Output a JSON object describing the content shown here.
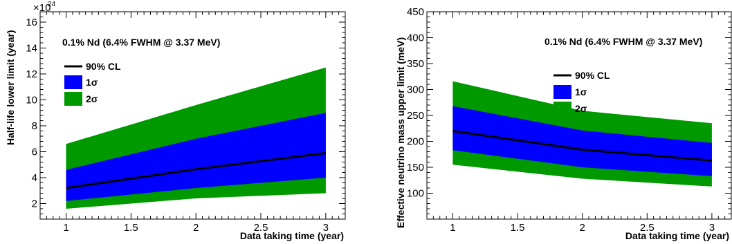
{
  "chart_data": [
    {
      "type": "area",
      "id": "left",
      "x": [
        1,
        2,
        3
      ],
      "series": [
        {
          "name": "90% CL",
          "role": "median",
          "values": [
            3.2,
            4.65,
            5.9
          ]
        },
        {
          "name": "1σ",
          "role": "band",
          "low": [
            2.2,
            3.2,
            4.0
          ],
          "high": [
            4.6,
            7.0,
            9.0
          ]
        },
        {
          "name": "2σ",
          "role": "band",
          "low": [
            1.6,
            2.4,
            2.8
          ],
          "high": [
            6.6,
            9.6,
            12.5
          ]
        }
      ],
      "xlim": [
        0.8,
        3.15
      ],
      "ylim": [
        0.8,
        16.8
      ],
      "x_ticks": [
        1,
        1.5,
        2,
        2.5,
        3
      ],
      "x_tick_labels": [
        "1",
        "1.5",
        "2",
        "2.5",
        "3"
      ],
      "y_ticks": [
        2,
        4,
        6,
        8,
        10,
        12,
        14,
        16
      ],
      "y_tick_labels": [
        "2",
        "4",
        "6",
        "8",
        "10",
        "12",
        "14",
        "16"
      ],
      "exponent_label": "×10",
      "exponent_power": "24",
      "xlabel": "Data taking time (year)",
      "ylabel": "Half-life lower limit (year)",
      "annotation": "0.1% Nd (6.4% FWHM @ 3.37 MeV)",
      "legend": [
        "90% CL",
        "1σ",
        "2σ"
      ],
      "legend_position": "top-left",
      "grid": false
    },
    {
      "type": "area",
      "id": "right",
      "x": [
        1,
        2,
        3
      ],
      "series": [
        {
          "name": "90% CL",
          "role": "median",
          "values": [
            220,
            184,
            163
          ]
        },
        {
          "name": "1σ",
          "role": "band",
          "low": [
            183,
            150,
            133
          ],
          "high": [
            268,
            221,
            197
          ]
        },
        {
          "name": "2σ",
          "role": "band",
          "low": [
            155,
            128,
            113
          ],
          "high": [
            316,
            259,
            235
          ]
        }
      ],
      "xlim": [
        0.8,
        3.15
      ],
      "ylim": [
        50,
        450
      ],
      "x_ticks": [
        1,
        1.5,
        2,
        2.5,
        3
      ],
      "x_tick_labels": [
        "1",
        "1.5",
        "2",
        "2.5",
        "3"
      ],
      "y_ticks": [
        100,
        150,
        200,
        250,
        300,
        350,
        400,
        450
      ],
      "y_tick_labels": [
        "100",
        "150",
        "200",
        "250",
        "300",
        "350",
        "400",
        "450"
      ],
      "xlabel": "Data taking time (year)",
      "ylabel": "Effective neutrino mass upper limit (meV)",
      "annotation": "0.1% Nd (6.4% FWHM @ 3.37 MeV)",
      "legend": [
        "90% CL",
        "1σ",
        "2σ"
      ],
      "legend_position": "top-right",
      "grid": false
    }
  ],
  "colors": {
    "band_1sigma": "#0000ff",
    "band_2sigma": "#009900",
    "median_line": "#000000",
    "background": "#ffffff"
  }
}
